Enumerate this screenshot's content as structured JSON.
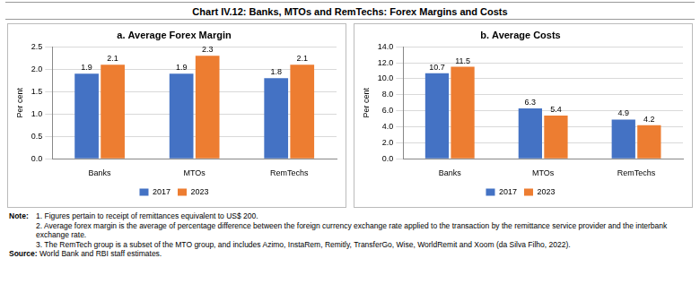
{
  "title": "Chart IV.12:  Banks, MTOs and RemTechs: Forex Margins and Costs",
  "notes_label": "Note:",
  "notes": [
    "1. Figures pertain to receipt of remittances equivalent to US$ 200.",
    "2. Average forex margin is the average of percentage difference between the foreign currency exchange rate applied to the transaction by the remittance service provider and the interbank exchange rate.",
    "3. The RemTech group is a subset of the MTO group, and includes Azimo, InstaRem, Remitly, TransferGo, Wise, WorldRemit and Xoom (da Silva Filho, 2022)."
  ],
  "source_label": "Source:",
  "source": "World Bank and RBI staff estimates.",
  "chart_data": [
    {
      "type": "bar",
      "title": "a. Average Forex Margin",
      "ylabel": "Per cent",
      "categories": [
        "Banks",
        "MTOs",
        "RemTechs"
      ],
      "series": [
        {
          "name": "2017",
          "color": "#4472c4",
          "values": [
            1.9,
            1.9,
            1.8
          ]
        },
        {
          "name": "2023",
          "color": "#ed7d31",
          "values": [
            2.1,
            2.3,
            2.1
          ]
        }
      ],
      "ylim": [
        0,
        2.5
      ],
      "yticks": [
        {
          "value": 0,
          "label": "0.0"
        },
        0.5,
        {
          "value": 1,
          "label": "1.0"
        },
        1.5,
        {
          "value": 2,
          "label": "2.0"
        },
        2.5
      ],
      "grid": true,
      "legend": "bottom",
      "data_labels": true
    },
    {
      "type": "bar",
      "title": "b. Average Costs",
      "ylabel": "Per cent",
      "categories": [
        "Banks",
        "MTOs",
        "RemTechs"
      ],
      "series": [
        {
          "name": "2017",
          "color": "#4472c4",
          "values": [
            10.7,
            6.3,
            4.9
          ]
        },
        {
          "name": "2023",
          "color": "#ed7d31",
          "values": [
            11.5,
            5.4,
            4.2
          ]
        }
      ],
      "ylim": [
        0,
        14
      ],
      "yticks": [
        {
          "value": 0,
          "label": "0.0"
        },
        {
          "value": 2,
          "label": "2.0"
        },
        {
          "value": 4,
          "label": "4.0"
        },
        {
          "value": 6,
          "label": "6.0"
        },
        {
          "value": 8,
          "label": "8.0"
        },
        {
          "value": 10,
          "label": "10.0"
        },
        {
          "value": 12,
          "label": "12.0"
        },
        {
          "value": 14,
          "label": "14.0"
        }
      ],
      "grid": true,
      "legend": "bottom",
      "data_labels": true
    }
  ]
}
